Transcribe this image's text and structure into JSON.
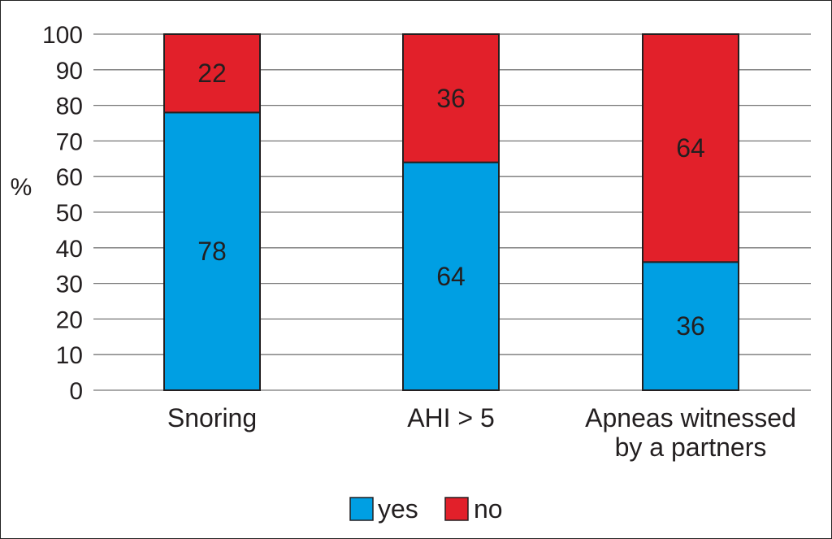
{
  "chart_data": {
    "type": "bar",
    "stacked": true,
    "categories": [
      [
        "Snoring"
      ],
      [
        "AHI > 5"
      ],
      [
        "Apneas witnessed",
        "by a partners"
      ]
    ],
    "series": [
      {
        "name": "yes",
        "values": [
          78,
          64,
          36
        ],
        "color": "#009fe3"
      },
      {
        "name": "no",
        "values": [
          22,
          36,
          64
        ],
        "color": "#e2202a"
      }
    ],
    "ylabel": "%",
    "ylim": [
      0,
      100
    ],
    "yticks": [
      0,
      10,
      20,
      30,
      40,
      50,
      60,
      70,
      80,
      90,
      100
    ],
    "grid": true,
    "legend_position": "bottom"
  }
}
